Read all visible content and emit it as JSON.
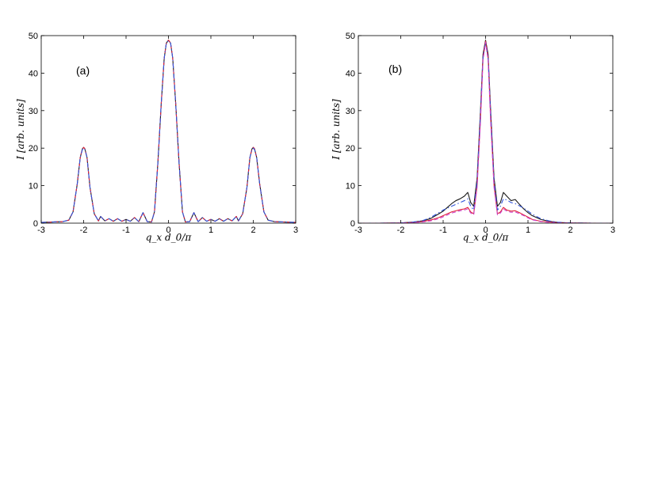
{
  "chart_data": [
    {
      "type": "line",
      "panel_label": "(a)",
      "xlabel": "q_x d_0/π",
      "ylabel": "I [arb. units]",
      "xlim": [
        -3,
        3
      ],
      "ylim": [
        0,
        50
      ],
      "xticks": [
        -3,
        -2,
        -1,
        0,
        1,
        2,
        3
      ],
      "yticks": [
        0,
        10,
        20,
        30,
        40,
        50
      ],
      "grid": false,
      "series": [
        {
          "color": "#1a1a1a",
          "dash": "solid",
          "x": [
            -3,
            -2.75,
            -2.5,
            -2.35,
            -2.25,
            -2.15,
            -2.08,
            -2.03,
            -2.0,
            -1.97,
            -1.92,
            -1.85,
            -1.75,
            -1.65,
            -1.6,
            -1.5,
            -1.4,
            -1.3,
            -1.2,
            -1.1,
            -1.0,
            -0.9,
            -0.8,
            -0.7,
            -0.6,
            -0.5,
            -0.4,
            -0.33,
            -0.25,
            -0.17,
            -0.1,
            -0.05,
            0.0,
            0.05,
            0.1,
            0.17,
            0.25,
            0.33,
            0.4,
            0.5,
            0.6,
            0.7,
            0.8,
            0.9,
            1.0,
            1.1,
            1.2,
            1.3,
            1.4,
            1.5,
            1.6,
            1.65,
            1.75,
            1.85,
            1.92,
            1.97,
            2.0,
            2.03,
            2.08,
            2.15,
            2.25,
            2.35,
            2.5,
            2.75,
            3
          ],
          "y": [
            0.2,
            0.3,
            0.4,
            0.8,
            3.0,
            10.5,
            17.5,
            19.8,
            20.2,
            19.8,
            17.5,
            9.5,
            2.5,
            0.6,
            1.8,
            0.6,
            1.2,
            0.5,
            1.2,
            0.5,
            1.0,
            0.5,
            1.5,
            0.4,
            2.8,
            0.4,
            0.3,
            3.0,
            16.0,
            32.0,
            44.0,
            48.0,
            48.8,
            48.0,
            44.0,
            32.0,
            16.0,
            3.0,
            0.3,
            0.4,
            2.8,
            0.4,
            1.5,
            0.5,
            1.0,
            0.5,
            1.2,
            0.5,
            1.2,
            0.6,
            1.8,
            0.6,
            2.5,
            9.5,
            17.5,
            19.8,
            20.2,
            19.8,
            17.5,
            10.5,
            3.0,
            0.8,
            0.4,
            0.3,
            0.2
          ]
        },
        {
          "color": "#e0203a",
          "dash": "dashed",
          "x": [
            -3,
            -2.75,
            -2.5,
            -2.35,
            -2.25,
            -2.15,
            -2.08,
            -2.03,
            -2.0,
            -1.97,
            -1.92,
            -1.85,
            -1.75,
            -1.65,
            -1.6,
            -1.5,
            -1.4,
            -1.3,
            -1.2,
            -1.1,
            -1.0,
            -0.9,
            -0.8,
            -0.7,
            -0.6,
            -0.5,
            -0.4,
            -0.33,
            -0.25,
            -0.17,
            -0.1,
            -0.05,
            0.0,
            0.05,
            0.1,
            0.17,
            0.25,
            0.33,
            0.4,
            0.5,
            0.6,
            0.7,
            0.8,
            0.9,
            1.0,
            1.1,
            1.2,
            1.3,
            1.4,
            1.5,
            1.6,
            1.65,
            1.75,
            1.85,
            1.92,
            1.97,
            2.0,
            2.03,
            2.08,
            2.15,
            2.25,
            2.35,
            2.5,
            2.75,
            3
          ],
          "y": [
            0.2,
            0.3,
            0.4,
            0.8,
            3.0,
            10.5,
            17.5,
            19.8,
            20.2,
            19.8,
            17.5,
            9.5,
            2.5,
            0.6,
            1.8,
            0.6,
            1.2,
            0.5,
            1.2,
            0.5,
            1.0,
            0.5,
            1.5,
            0.4,
            2.8,
            0.4,
            0.3,
            3.0,
            16.0,
            32.0,
            44.0,
            48.0,
            48.8,
            48.0,
            44.0,
            32.0,
            16.0,
            3.0,
            0.3,
            0.4,
            2.8,
            0.4,
            1.5,
            0.5,
            1.0,
            0.5,
            1.2,
            0.5,
            1.2,
            0.6,
            1.8,
            0.6,
            2.5,
            9.5,
            17.5,
            19.8,
            20.2,
            19.8,
            17.5,
            10.5,
            3.0,
            0.8,
            0.4,
            0.3,
            0.2
          ]
        },
        {
          "color": "#3355dd",
          "dash": "dashdot",
          "x": [
            -3,
            -2.75,
            -2.5,
            -2.35,
            -2.25,
            -2.15,
            -2.08,
            -2.03,
            -2.0,
            -1.97,
            -1.92,
            -1.85,
            -1.75,
            -1.65,
            -1.6,
            -1.5,
            -1.4,
            -1.3,
            -1.2,
            -1.1,
            -1.0,
            -0.9,
            -0.8,
            -0.7,
            -0.6,
            -0.5,
            -0.4,
            -0.33,
            -0.25,
            -0.17,
            -0.1,
            -0.05,
            0.0,
            0.05,
            0.1,
            0.17,
            0.25,
            0.33,
            0.4,
            0.5,
            0.6,
            0.7,
            0.8,
            0.9,
            1.0,
            1.1,
            1.2,
            1.3,
            1.4,
            1.5,
            1.6,
            1.65,
            1.75,
            1.85,
            1.92,
            1.97,
            2.0,
            2.03,
            2.08,
            2.15,
            2.25,
            2.35,
            2.5,
            2.75,
            3
          ],
          "y": [
            0.2,
            0.3,
            0.4,
            0.8,
            3.0,
            10.5,
            17.5,
            19.6,
            20.0,
            19.6,
            17.5,
            9.5,
            2.5,
            0.6,
            1.8,
            0.6,
            1.2,
            0.5,
            1.2,
            0.5,
            1.0,
            0.5,
            1.5,
            0.4,
            2.8,
            0.4,
            0.3,
            3.0,
            16.0,
            32.0,
            44.0,
            48.0,
            48.6,
            48.0,
            44.0,
            32.0,
            16.0,
            3.0,
            0.3,
            0.4,
            2.8,
            0.4,
            1.5,
            0.5,
            1.0,
            0.5,
            1.2,
            0.5,
            1.2,
            0.6,
            1.8,
            0.6,
            2.5,
            9.5,
            17.5,
            19.6,
            20.0,
            19.6,
            17.5,
            10.5,
            3.0,
            0.8,
            0.4,
            0.3,
            0.2
          ]
        }
      ]
    },
    {
      "type": "line",
      "panel_label": "(b)",
      "xlabel": "q_x d_0/π",
      "ylabel": "I [arb. units]",
      "xlim": [
        -3,
        3
      ],
      "ylim": [
        0,
        50
      ],
      "xticks": [
        -3,
        -2,
        -1,
        0,
        1,
        2,
        3
      ],
      "yticks": [
        0,
        10,
        20,
        30,
        40,
        50
      ],
      "grid": false,
      "series": [
        {
          "color": "#1a1a1a",
          "dash": "solid",
          "x": [
            -3,
            -2.5,
            -2.0,
            -1.7,
            -1.5,
            -1.3,
            -1.1,
            -1.0,
            -0.9,
            -0.8,
            -0.7,
            -0.6,
            -0.5,
            -0.42,
            -0.35,
            -0.28,
            -0.2,
            -0.12,
            -0.06,
            0.0,
            0.06,
            0.12,
            0.2,
            0.28,
            0.35,
            0.42,
            0.5,
            0.6,
            0.7,
            0.8,
            0.9,
            1.0,
            1.1,
            1.3,
            1.5,
            1.7,
            2.0,
            2.5,
            3
          ],
          "y": [
            0,
            0,
            0.05,
            0.3,
            0.6,
            1.2,
            2.5,
            3.2,
            4.2,
            5.2,
            6.0,
            6.5,
            7.2,
            8.2,
            5.5,
            4.5,
            12.0,
            30.0,
            45.0,
            48.8,
            45.0,
            30.0,
            12.0,
            4.5,
            5.5,
            8.2,
            7.2,
            6.0,
            6.3,
            5.0,
            3.8,
            2.8,
            2.0,
            1.0,
            0.5,
            0.2,
            0.05,
            0,
            0
          ]
        },
        {
          "color": "#e0203a",
          "dash": "solid",
          "x": [
            -3,
            -2.5,
            -2.0,
            -1.7,
            -1.5,
            -1.3,
            -1.1,
            -1.0,
            -0.9,
            -0.8,
            -0.7,
            -0.6,
            -0.5,
            -0.42,
            -0.35,
            -0.28,
            -0.2,
            -0.12,
            -0.06,
            0.0,
            0.06,
            0.12,
            0.2,
            0.28,
            0.35,
            0.42,
            0.5,
            0.6,
            0.7,
            0.8,
            0.9,
            1.0,
            1.1,
            1.3,
            1.5,
            1.7,
            2.0,
            2.5,
            3
          ],
          "y": [
            0,
            0,
            0.05,
            0.2,
            0.4,
            0.8,
            1.5,
            2.0,
            2.5,
            3.0,
            3.3,
            3.6,
            3.8,
            4.2,
            3.0,
            2.5,
            10.0,
            28.0,
            44.0,
            48.5,
            44.0,
            28.0,
            10.0,
            2.5,
            3.0,
            4.2,
            3.5,
            3.2,
            3.3,
            2.8,
            2.2,
            1.6,
            1.0,
            0.5,
            0.3,
            0.1,
            0.05,
            0,
            0
          ]
        },
        {
          "color": "#3355dd",
          "dash": "dashdot",
          "x": [
            -3,
            -2.5,
            -2.0,
            -1.7,
            -1.5,
            -1.3,
            -1.1,
            -1.0,
            -0.9,
            -0.8,
            -0.7,
            -0.6,
            -0.5,
            -0.42,
            -0.35,
            -0.28,
            -0.2,
            -0.12,
            -0.06,
            0.0,
            0.06,
            0.12,
            0.2,
            0.28,
            0.35,
            0.42,
            0.5,
            0.6,
            0.7,
            0.8,
            0.9,
            1.0,
            1.1,
            1.3,
            1.5,
            1.7,
            2.0,
            2.5,
            3
          ],
          "y": [
            0,
            0,
            0.05,
            0.3,
            0.6,
            1.5,
            2.8,
            3.5,
            4.0,
            4.5,
            5.0,
            5.5,
            6.0,
            6.5,
            4.5,
            3.5,
            11.0,
            29.0,
            44.0,
            48.0,
            44.0,
            29.0,
            11.0,
            3.5,
            4.5,
            6.5,
            6.2,
            5.5,
            5.2,
            4.6,
            4.0,
            3.2,
            2.4,
            1.2,
            0.6,
            0.25,
            0.05,
            0,
            0
          ]
        },
        {
          "color": "#cc44cc",
          "dash": "dashed",
          "x": [
            -3,
            -2.5,
            -2.0,
            -1.7,
            -1.5,
            -1.3,
            -1.1,
            -1.0,
            -0.9,
            -0.8,
            -0.7,
            -0.6,
            -0.5,
            -0.42,
            -0.35,
            -0.28,
            -0.2,
            -0.12,
            -0.06,
            0.0,
            0.06,
            0.12,
            0.2,
            0.28,
            0.35,
            0.42,
            0.5,
            0.6,
            0.7,
            0.8,
            0.9,
            1.0,
            1.1,
            1.3,
            1.5,
            1.7,
            2.0,
            2.5,
            3
          ],
          "y": [
            0,
            0,
            0.05,
            0.15,
            0.3,
            0.6,
            1.2,
            1.7,
            2.2,
            2.7,
            3.0,
            3.3,
            3.5,
            3.8,
            2.7,
            2.2,
            9.5,
            27.0,
            43.5,
            48.2,
            43.5,
            27.0,
            9.5,
            2.2,
            2.7,
            3.8,
            3.2,
            2.9,
            3.0,
            2.5,
            2.0,
            1.4,
            0.9,
            0.4,
            0.2,
            0.08,
            0.03,
            0,
            0
          ]
        }
      ]
    }
  ]
}
